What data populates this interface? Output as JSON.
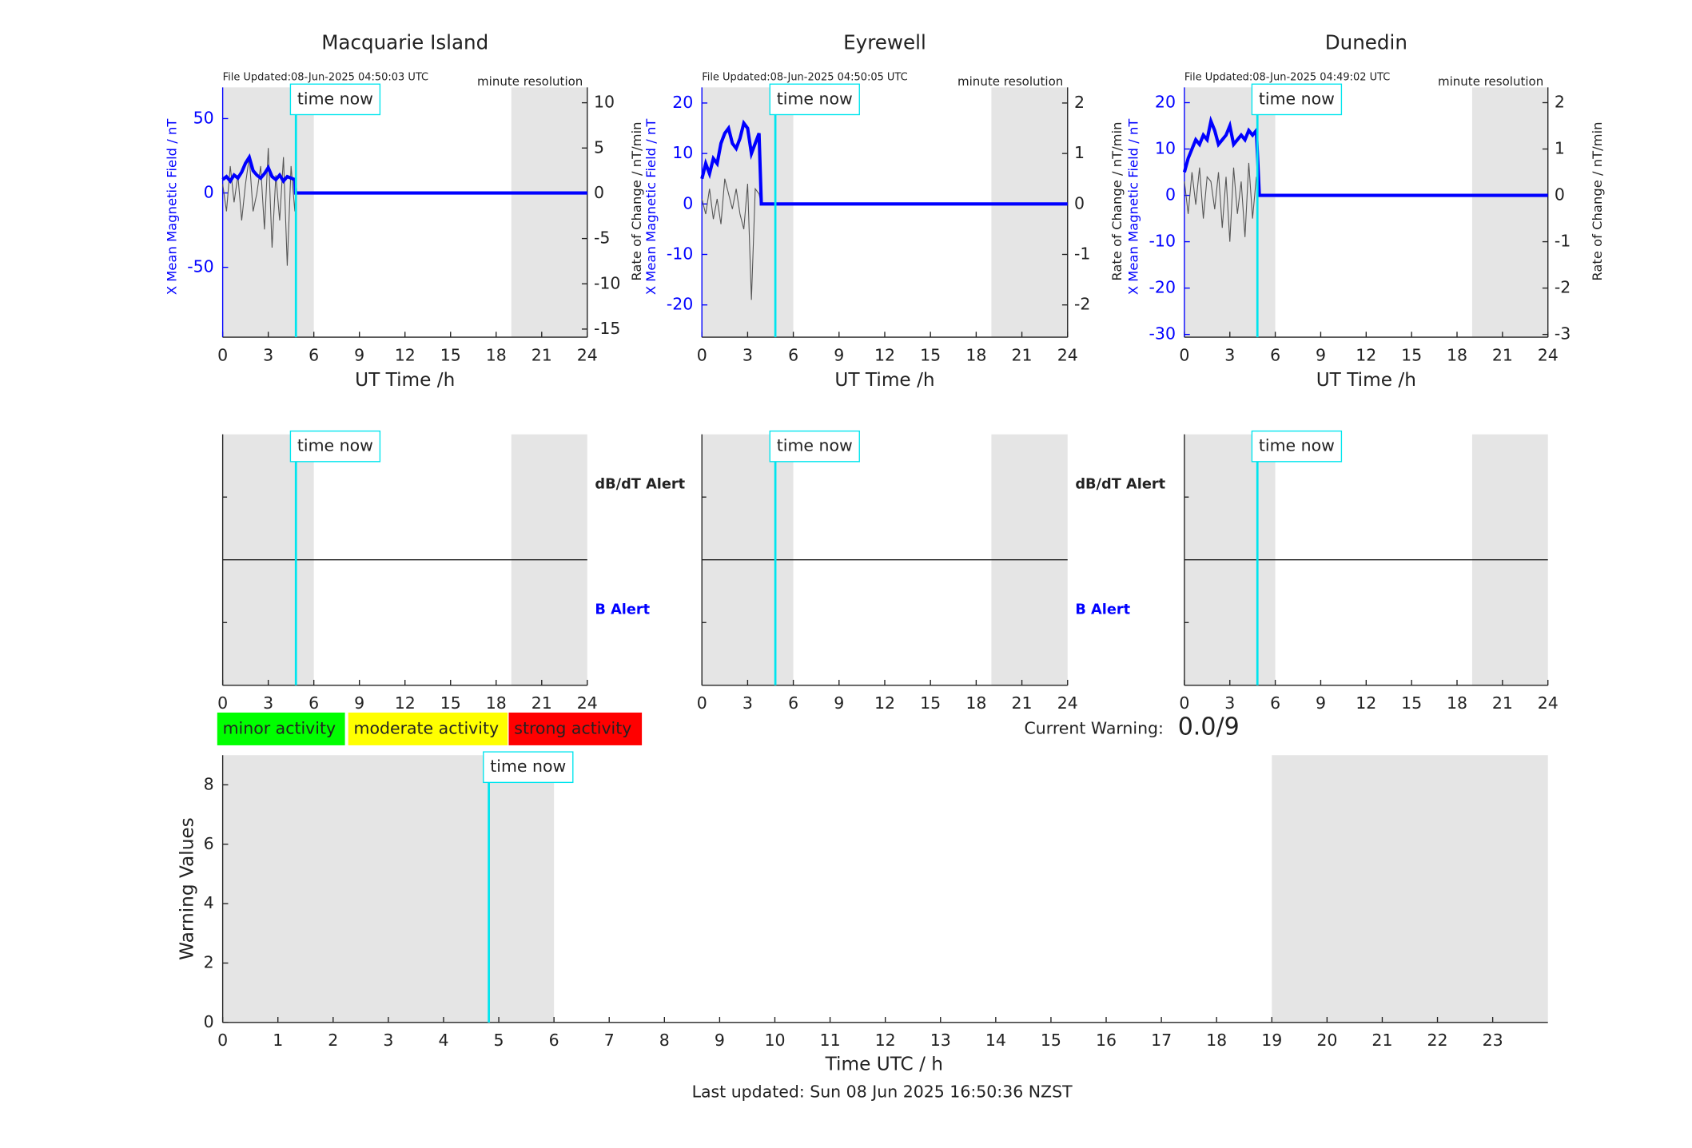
{
  "chart_data": [
    {
      "type": "dual-line",
      "title": "Macquarie Island",
      "file_updated": "File Updated:08-Jun-2025 04:50:03 UTC",
      "resolution": "minute resolution",
      "ylabel": "X Mean Magnetic Field / nT",
      "y2label": "Rate of Change / nT/min",
      "xlabel": "UT Time /h",
      "xlim": [
        0,
        24
      ],
      "xticks": [
        0,
        3,
        6,
        9,
        12,
        15,
        18,
        21,
        24
      ],
      "ylim": [
        -97,
        71
      ],
      "yticks": [
        -50,
        0,
        50
      ],
      "y2lim": [
        -15.9,
        11.7
      ],
      "y2ticks": [
        -15,
        -10,
        -5,
        0,
        5,
        10
      ],
      "shaded": [
        [
          0,
          6
        ],
        [
          19,
          24
        ]
      ],
      "time_now": 4.82,
      "time_now_label": "time now",
      "x": [
        0,
        0.25,
        0.5,
        0.75,
        1,
        1.25,
        1.5,
        1.75,
        2,
        2.25,
        2.5,
        2.75,
        3,
        3.25,
        3.5,
        3.75,
        4,
        4.25,
        4.5,
        4.75,
        4.8,
        24
      ],
      "series": [
        {
          "color": "#0000ff",
          "axis": "y",
          "values": [
            9,
            11,
            8,
            12,
            10,
            14,
            20,
            24,
            15,
            12,
            10,
            13,
            17,
            11,
            9,
            12,
            8,
            11,
            10,
            9,
            0,
            0
          ]
        },
        {
          "color": "#555555",
          "axis": "y2",
          "values": [
            1,
            -2,
            3,
            -1,
            2,
            -3,
            1,
            4,
            -2,
            0,
            3,
            -4,
            5,
            -6,
            2,
            -3,
            4,
            -8,
            3,
            -2,
            0,
            0
          ]
        }
      ]
    },
    {
      "type": "dual-line",
      "title": "Eyrewell",
      "file_updated": "File Updated:08-Jun-2025 04:50:05 UTC",
      "resolution": "minute resolution",
      "ylabel": "X Mean Magnetic Field / nT",
      "y2label": "Rate of Change / nT/min",
      "xlabel": "UT Time /h",
      "xlim": [
        0,
        24
      ],
      "xticks": [
        0,
        3,
        6,
        9,
        12,
        15,
        18,
        21,
        24
      ],
      "ylim": [
        -26.4,
        23.1
      ],
      "yticks": [
        -20,
        -10,
        0,
        10,
        20
      ],
      "y2lim": [
        -2.64,
        2.31
      ],
      "y2ticks": [
        -2,
        -1,
        0,
        1,
        2
      ],
      "shaded": [
        [
          0,
          6
        ],
        [
          19,
          24
        ]
      ],
      "time_now": 4.82,
      "time_now_label": "time now",
      "x": [
        0,
        0.25,
        0.5,
        0.75,
        1,
        1.25,
        1.5,
        1.75,
        2,
        2.25,
        2.5,
        2.75,
        3,
        3.25,
        3.5,
        3.75,
        3.9,
        24
      ],
      "series": [
        {
          "color": "#0000ff",
          "axis": "y",
          "values": [
            5,
            8,
            6,
            9,
            8,
            12,
            14,
            15,
            12,
            11,
            13,
            16,
            15,
            10,
            12,
            14,
            0,
            0
          ]
        },
        {
          "color": "#555555",
          "axis": "y2",
          "values": [
            0.1,
            -0.2,
            0.3,
            -0.3,
            0.1,
            -0.4,
            0.5,
            0.2,
            -0.1,
            0.3,
            -0.2,
            -0.5,
            0.4,
            -1.9,
            0.3,
            0.2,
            0,
            0
          ]
        }
      ]
    },
    {
      "type": "dual-line",
      "title": "Dunedin",
      "file_updated": "File Updated:08-Jun-2025 04:49:02 UTC",
      "resolution": "minute resolution",
      "ylabel": "X Mean Magnetic Field / nT",
      "y2label": "Rate of Change / nT/min",
      "xlabel": "UT Time /h",
      "xlim": [
        0,
        24
      ],
      "xticks": [
        0,
        3,
        6,
        9,
        12,
        15,
        18,
        21,
        24
      ],
      "ylim": [
        -30.6,
        23.3
      ],
      "yticks": [
        -30,
        -20,
        -10,
        0,
        10,
        20
      ],
      "y2lim": [
        -3.06,
        2.33
      ],
      "y2ticks": [
        -3,
        -2,
        -1,
        0,
        1,
        2
      ],
      "shaded": [
        [
          0,
          6
        ],
        [
          19,
          24
        ]
      ],
      "time_now": 4.82,
      "time_now_label": "time now",
      "x": [
        0,
        0.25,
        0.5,
        0.75,
        1,
        1.25,
        1.5,
        1.75,
        2,
        2.25,
        2.5,
        2.75,
        3,
        3.25,
        3.5,
        3.75,
        4,
        4.25,
        4.5,
        4.75,
        4.95,
        24
      ],
      "series": [
        {
          "color": "#0000ff",
          "axis": "y",
          "values": [
            5,
            8,
            10,
            12,
            11,
            13,
            12,
            16,
            14,
            11,
            12,
            13,
            15,
            11,
            12,
            13,
            12,
            14,
            13,
            14,
            0,
            0
          ]
        },
        {
          "color": "#555555",
          "axis": "y2",
          "values": [
            0.3,
            -0.4,
            0.5,
            -0.2,
            0.6,
            -0.5,
            0.4,
            0.3,
            -0.3,
            0.5,
            -0.7,
            0.4,
            -1.0,
            0.6,
            -0.4,
            0.3,
            -0.9,
            0.7,
            -0.5,
            0.4,
            0,
            0
          ]
        }
      ]
    },
    {
      "type": "alert",
      "upper_label": "dB/dT Alert",
      "lower_label": "B Alert",
      "xlim": [
        0,
        24
      ],
      "xticks": [
        0,
        3,
        6,
        9,
        12,
        15,
        18,
        21,
        24
      ],
      "shaded": [
        [
          0,
          6
        ],
        [
          19,
          24
        ]
      ],
      "time_now": 4.82,
      "time_now_label": "time now"
    },
    {
      "type": "alert",
      "upper_label": "dB/dT Alert",
      "lower_label": "B Alert",
      "xlim": [
        0,
        24
      ],
      "xticks": [
        0,
        3,
        6,
        9,
        12,
        15,
        18,
        21,
        24
      ],
      "shaded": [
        [
          0,
          6
        ],
        [
          19,
          24
        ]
      ],
      "time_now": 4.82,
      "time_now_label": "time now"
    },
    {
      "type": "alert",
      "xlim": [
        0,
        24
      ],
      "xticks": [
        0,
        3,
        6,
        9,
        12,
        15,
        18,
        21,
        24
      ],
      "shaded": [
        [
          0,
          6
        ],
        [
          19,
          24
        ]
      ],
      "time_now": 4.82,
      "time_now_label": "time now"
    },
    {
      "type": "warning",
      "ylabel": "Warning Values",
      "xlabel": "Time UTC / h",
      "footer": "Last updated: Sun 08 Jun 2025 16:50:36 NZST",
      "levels": [
        {
          "name": "minor activity",
          "color": "#00ff00"
        },
        {
          "name": "moderate activity",
          "color": "#ffff00"
        },
        {
          "name": "strong activity",
          "color": "#ff0000"
        }
      ],
      "current_warning_label": "Current Warning:",
      "current_warning": "0.0/9",
      "xlim": [
        0,
        24
      ],
      "xticks": [
        0,
        1,
        2,
        3,
        4,
        5,
        6,
        7,
        8,
        9,
        10,
        11,
        12,
        13,
        14,
        15,
        16,
        17,
        18,
        19,
        20,
        21,
        22,
        23
      ],
      "ylim": [
        0,
        9
      ],
      "yticks": [
        0,
        2,
        4,
        6,
        8
      ],
      "shaded": [
        [
          0,
          6
        ],
        [
          19,
          24
        ]
      ],
      "time_now": 4.82,
      "time_now_label": "time now"
    }
  ]
}
